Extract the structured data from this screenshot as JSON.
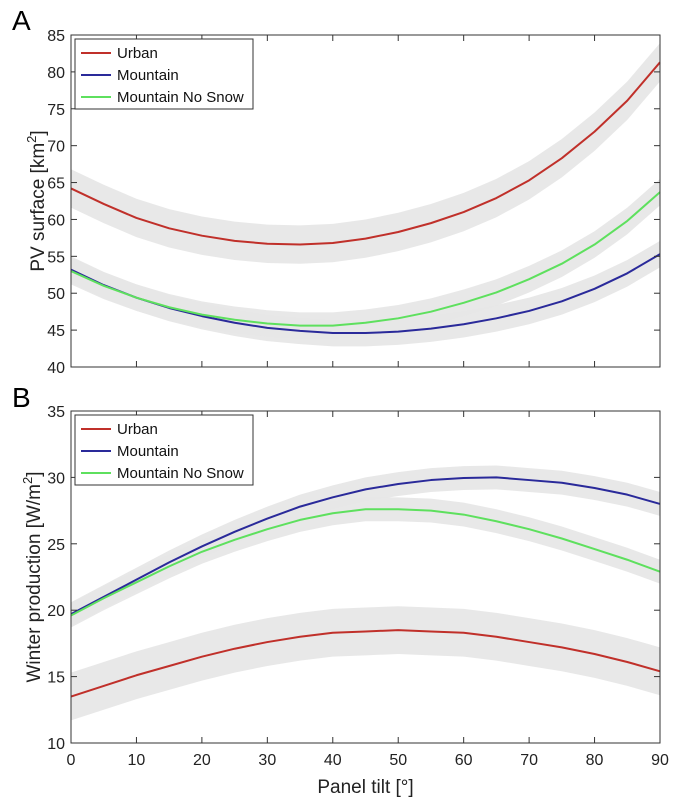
{
  "chart_data": [
    {
      "panel": "A",
      "type": "line",
      "xlabel": "Panel tilt [°]",
      "ylabel": "PV surface [km²]",
      "ylabel_main": "PV surface [km",
      "ylabel_sup": "2",
      "ylabel_tail": "]",
      "xlim": [
        0,
        90
      ],
      "ylim": [
        40,
        85
      ],
      "xticks": [
        "0",
        "10",
        "20",
        "30",
        "40",
        "50",
        "60",
        "70",
        "80",
        "90"
      ],
      "yticks": [
        "40",
        "45",
        "50",
        "55",
        "60",
        "65",
        "70",
        "75",
        "80",
        "85"
      ],
      "grid": false,
      "legend_position": "top-left",
      "x": [
        0,
        5,
        10,
        15,
        20,
        25,
        30,
        35,
        40,
        45,
        50,
        55,
        60,
        65,
        70,
        75,
        80,
        85,
        90
      ],
      "series": [
        {
          "name": "Urban",
          "color": "#c0302a",
          "band": 2.6,
          "values": [
            64.2,
            62.1,
            60.2,
            58.8,
            57.8,
            57.1,
            56.7,
            56.6,
            56.8,
            57.4,
            58.3,
            59.5,
            61.0,
            62.9,
            65.3,
            68.3,
            71.9,
            76.1,
            81.3
          ]
        },
        {
          "name": "Mountain",
          "color": "#2a2a9a",
          "band": 1.8,
          "values": [
            53.2,
            51.1,
            49.4,
            48.0,
            46.9,
            46.0,
            45.3,
            44.9,
            44.6,
            44.6,
            44.8,
            45.2,
            45.8,
            46.6,
            47.6,
            48.9,
            50.6,
            52.7,
            55.3
          ]
        },
        {
          "name": "Mountain No Snow",
          "color": "#5ee05e",
          "band": 1.8,
          "values": [
            53.0,
            51.0,
            49.4,
            48.1,
            47.1,
            46.4,
            45.9,
            45.6,
            45.6,
            46.0,
            46.6,
            47.5,
            48.7,
            50.1,
            51.9,
            54.0,
            56.6,
            59.8,
            63.7
          ]
        }
      ]
    },
    {
      "panel": "B",
      "type": "line",
      "xlabel": "Panel tilt [°]",
      "ylabel": "Winter production [W/m²]",
      "ylabel_main": "Winter production [W/m",
      "ylabel_sup": "2",
      "ylabel_tail": "]",
      "xlim": [
        0,
        90
      ],
      "ylim": [
        10,
        35
      ],
      "xticks": [
        "0",
        "10",
        "20",
        "30",
        "40",
        "50",
        "60",
        "70",
        "80",
        "90"
      ],
      "yticks": [
        "10",
        "15",
        "20",
        "25",
        "30",
        "35"
      ],
      "grid": false,
      "legend_position": "top-left",
      "x": [
        0,
        5,
        10,
        15,
        20,
        25,
        30,
        35,
        40,
        45,
        50,
        55,
        60,
        65,
        70,
        75,
        80,
        85,
        90
      ],
      "series": [
        {
          "name": "Urban",
          "color": "#c0302a",
          "band": 1.8,
          "values": [
            13.5,
            14.3,
            15.1,
            15.8,
            16.5,
            17.1,
            17.6,
            18.0,
            18.3,
            18.4,
            18.5,
            18.4,
            18.3,
            18.0,
            17.6,
            17.2,
            16.7,
            16.1,
            15.4
          ]
        },
        {
          "name": "Mountain",
          "color": "#2a2a9a",
          "band": 0.9,
          "values": [
            19.7,
            21.0,
            22.3,
            23.6,
            24.8,
            25.9,
            26.9,
            27.8,
            28.5,
            29.1,
            29.5,
            29.8,
            29.95,
            30.0,
            29.8,
            29.6,
            29.2,
            28.7,
            28.0
          ]
        },
        {
          "name": "Mountain No Snow",
          "color": "#5ee05e",
          "band": 0.9,
          "values": [
            19.6,
            20.9,
            22.1,
            23.3,
            24.4,
            25.3,
            26.1,
            26.8,
            27.3,
            27.6,
            27.6,
            27.5,
            27.2,
            26.7,
            26.1,
            25.4,
            24.6,
            23.8,
            22.9
          ]
        }
      ]
    }
  ]
}
